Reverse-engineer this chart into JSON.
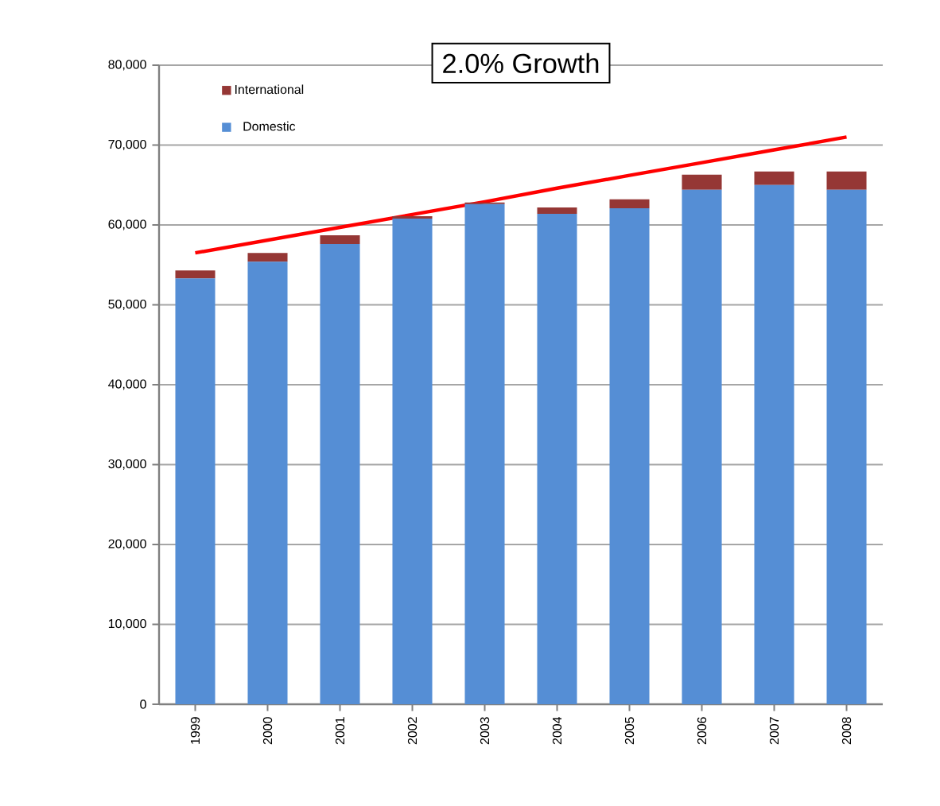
{
  "chart_data": {
    "type": "bar",
    "title": "2.0% Growth",
    "stacked": true,
    "categories": [
      "1999",
      "2000",
      "2001",
      "2002",
      "2003",
      "2004",
      "2005",
      "2006",
      "2007",
      "2008"
    ],
    "series": [
      {
        "name": "Domestic",
        "color": "#558ed5",
        "values": [
          53300,
          55400,
          57600,
          60800,
          62600,
          61400,
          62100,
          64400,
          65000,
          64400
        ]
      },
      {
        "name": "International",
        "color": "#953735",
        "values": [
          1000,
          1100,
          1100,
          300,
          200,
          800,
          1100,
          1900,
          1700,
          2300
        ]
      },
      {
        "type": "line",
        "color": "#ff0000",
        "values": [
          56500,
          58100,
          59700,
          61300,
          62900,
          64600,
          66200,
          67800,
          69400,
          71000
        ]
      }
    ],
    "ylim": [
      0,
      80000
    ],
    "yticks": [
      {
        "value": 0,
        "label": "0"
      },
      {
        "value": 10000,
        "label": "10,000"
      },
      {
        "value": 20000,
        "label": "20,000"
      },
      {
        "value": 30000,
        "label": "30,000"
      },
      {
        "value": 40000,
        "label": "40,000"
      },
      {
        "value": 50000,
        "label": "50,000"
      },
      {
        "value": 60000,
        "label": "60,000"
      },
      {
        "value": 70000,
        "label": "70,000"
      },
      {
        "value": 80000,
        "label": "80,000"
      }
    ],
    "grid": "y",
    "legend": "top left"
  }
}
